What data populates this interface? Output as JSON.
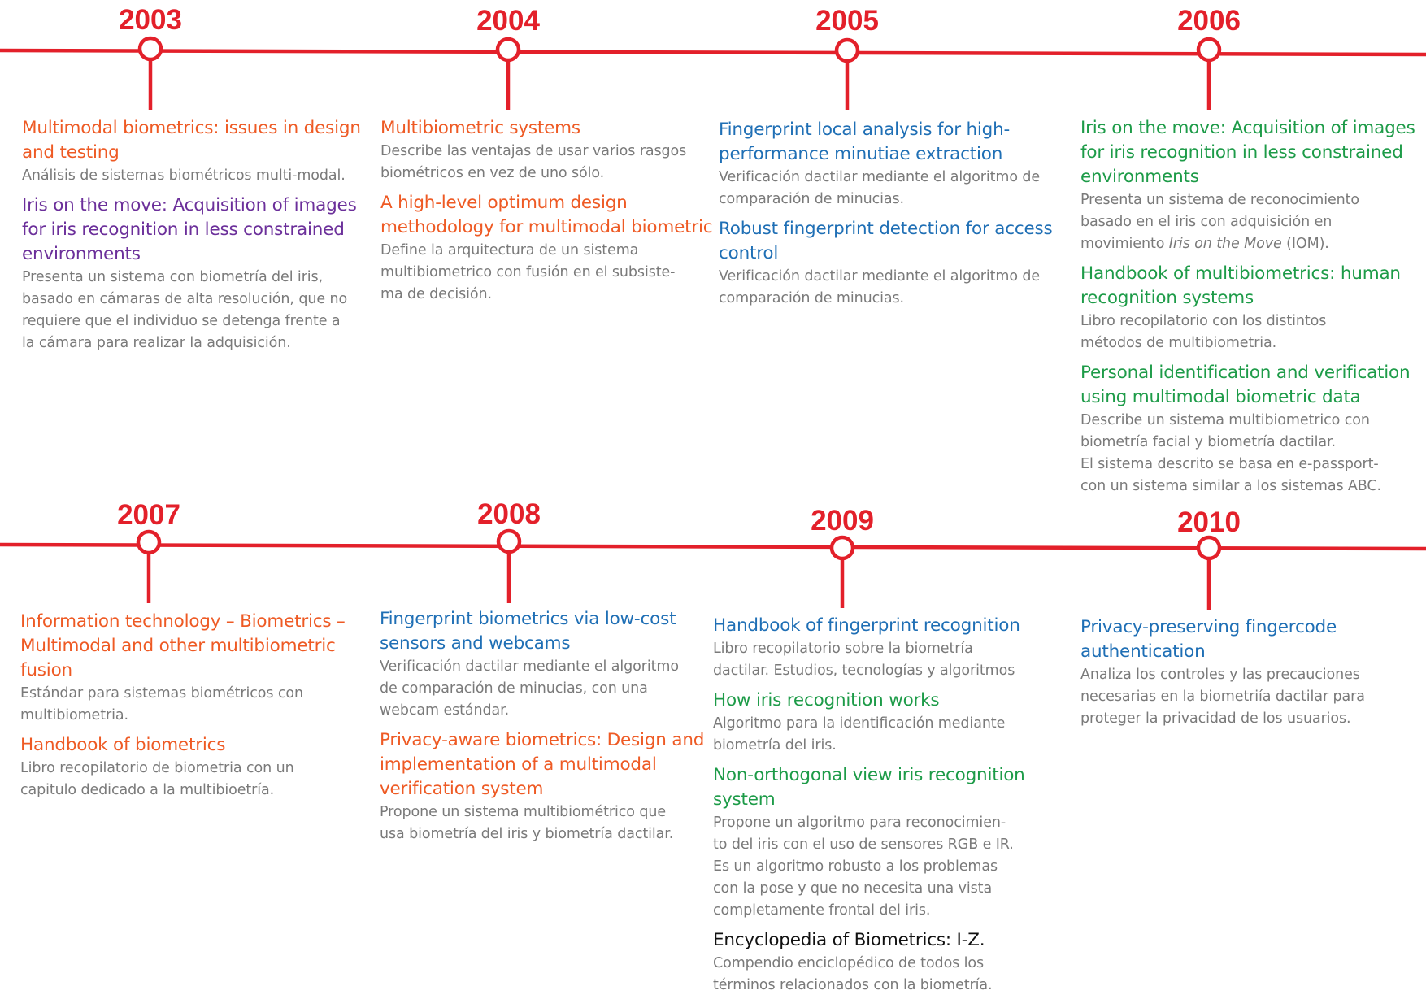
{
  "colors": {
    "timeline": "#e3202a",
    "orange": "#ee5a24",
    "purple": "#6b2f9a",
    "blue": "#1f6fb5",
    "green": "#1d9b48",
    "black": "#111111",
    "gray": "#7a7a7a"
  },
  "rows": [
    {
      "years": [
        {
          "year": "2003",
          "entries": [
            {
              "title": "Multimodal biometrics: issues in design and testing",
              "title_color": "orange",
              "description": [
                "Análisis de sistemas biométricos multi-modal."
              ]
            },
            {
              "title": "Iris on the move: Acquisition of images for iris recognition in less constrained environments",
              "title_color": "purple",
              "description": [
                "Presenta un sistema con biometría del iris,",
                "basado en cámaras de alta resolución, que no",
                "requiere que el individuo se detenga frente a",
                "la cámara para realizar la adquisición."
              ]
            }
          ]
        },
        {
          "year": "2004",
          "entries": [
            {
              "title": "Multibiometric systems",
              "title_color": "orange",
              "description": [
                "Describe las ventajas de usar varios rasgos",
                "biométricos en vez de uno sólo."
              ]
            },
            {
              "title": "A high-level optimum design methodology for multimodal biometric",
              "title_color": "orange",
              "description": [
                "Define la arquitectura de un sistema",
                "multibiometrico con fusión en el subsiste-",
                "ma de decisión."
              ]
            }
          ]
        },
        {
          "year": "2005",
          "entries": [
            {
              "title": "Fingerprint local analysis for high-performance minutiae extraction",
              "title_color": "blue",
              "description": [
                "Verificación dactilar mediante el algoritmo de",
                "comparación de minucias."
              ]
            },
            {
              "title": "Robust fingerprint detection for access control",
              "title_color": "blue",
              "description": [
                "Verificación dactilar mediante el algoritmo de",
                "comparación de minucias."
              ]
            }
          ]
        },
        {
          "year": "2006",
          "entries": [
            {
              "title": "Iris on the move: Acquisition of images for iris recognition in less constrained environments",
              "title_color": "green",
              "description": [
                "Presenta un sistema de reconocimiento",
                "basado en el iris con adquisición en",
                "movimiento Iris on the Move (IOM)."
              ],
              "description_italic": "Iris on the Move"
            },
            {
              "title": "Handbook of multibiometrics: human recognition systems",
              "title_color": "green",
              "description": [
                "Libro recopilatorio con los distintos",
                "métodos de multibiometria."
              ]
            },
            {
              "title": "Personal identification and verification using multimodal biometric data",
              "title_color": "green",
              "description": [
                "Describe un sistema multibiometrico con",
                "biometría facial y biometría dactilar.",
                "El sistema descrito se basa en  e-passport-",
                "con un sistema similar a los sistemas ABC."
              ]
            }
          ]
        }
      ]
    },
    {
      "years": [
        {
          "year": "2007",
          "entries": [
            {
              "title": "Information technology – Biometrics – Multimodal and other multibiometric fusion",
              "title_color": "orange",
              "description": [
                "Estándar para sistemas biométricos con",
                "multibiometria."
              ]
            },
            {
              "title": "Handbook of biometrics",
              "title_color": "orange",
              "description": [
                "Libro recopilatorio de biometria con un",
                "capitulo dedicado a la multibioetría."
              ]
            }
          ]
        },
        {
          "year": "2008",
          "entries": [
            {
              "title": "Fingerprint biometrics via low-cost sensors and webcams",
              "title_color": "blue",
              "description": [
                "Verificación dactilar mediante el algoritmo",
                "de comparación de minucias, con una",
                "webcam estándar."
              ]
            },
            {
              "title": "Privacy-aware biometrics: Design and implementation of a multimodal verification system",
              "title_color": "orange",
              "description": [
                "Propone un sistema multibiométrico que",
                "usa biometría del iris y biometría dactilar."
              ]
            }
          ]
        },
        {
          "year": "2009",
          "entries": [
            {
              "title": "Handbook of fingerprint recognition",
              "title_color": "blue",
              "description": [
                "Libro recopilatorio sobre la biometría",
                "dactilar. Estudios, tecnologías y algoritmos"
              ]
            },
            {
              "title": "How iris recognition works",
              "title_color": "green",
              "description": [
                "Algoritmo para la identificación mediante",
                "biometría del iris."
              ]
            },
            {
              "title": "Non-orthogonal view iris recognition system",
              "title_color": "green",
              "description": [
                "Propone un algoritmo para reconocimien-",
                "to del iris con el uso de sensores RGB e IR.",
                "Es un algoritmo robusto a los problemas",
                "con la pose y que no necesita una vista",
                "completamente frontal del iris."
              ]
            },
            {
              "title": "Encyclopedia of Biometrics: I-Z.",
              "title_color": "black",
              "description": [
                "Compendio enciclopédico de todos los",
                "términos relacionados con la biometría."
              ]
            }
          ]
        },
        {
          "year": "2010",
          "entries": [
            {
              "title": "Privacy-preserving fingercode authentication",
              "title_color": "blue",
              "description": [
                "Analiza los controles y las precauciones",
                "necesarias en la biometriía dactilar para",
                "proteger la privacidad de los usuarios."
              ]
            }
          ]
        }
      ]
    }
  ]
}
